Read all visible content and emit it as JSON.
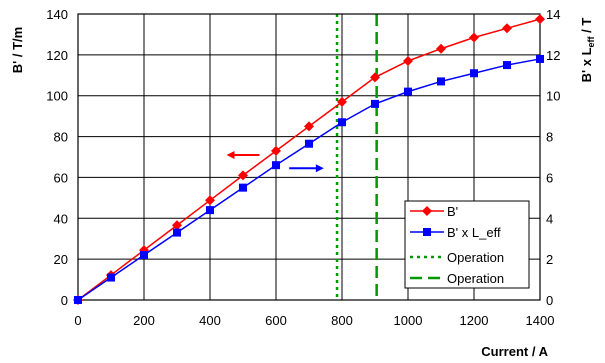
{
  "chart_data": {
    "type": "line",
    "xlabel": "Current / A",
    "ylabel_left": "B'  /  T/m",
    "ylabel_right_main": "B' x L",
    "ylabel_right_sub": "eff",
    "ylabel_right_tail": "  /  T",
    "xlim": [
      0,
      1400
    ],
    "ylim_left": [
      0,
      140
    ],
    "ylim_right": [
      0,
      14
    ],
    "x_ticks": [
      0,
      200,
      400,
      600,
      800,
      1000,
      1200,
      1400
    ],
    "y_ticks_left": [
      0,
      20,
      40,
      60,
      80,
      100,
      120,
      140
    ],
    "y_ticks_right": [
      0,
      2,
      4,
      6,
      8,
      10,
      12,
      14
    ],
    "grid": true,
    "legend_position": "bottom-right",
    "series": [
      {
        "name": "B'",
        "axis": "left",
        "color": "#ff0000",
        "marker": "diamond",
        "x": [
          0,
          100,
          200,
          300,
          400,
          500,
          600,
          700,
          800,
          900,
          1000,
          1100,
          1200,
          1300,
          1400
        ],
        "y": [
          0,
          12.2,
          24.4,
          36.6,
          48.8,
          61,
          73,
          85,
          97,
          109,
          117,
          123,
          128.5,
          133,
          137.5
        ]
      },
      {
        "name": "B' x L_eff",
        "axis": "right",
        "color": "#0000ff",
        "marker": "square",
        "x": [
          0,
          100,
          200,
          300,
          400,
          500,
          600,
          700,
          800,
          900,
          1000,
          1100,
          1200,
          1300,
          1400
        ],
        "y": [
          0,
          1.1,
          2.2,
          3.3,
          4.4,
          5.5,
          6.6,
          7.65,
          8.7,
          9.6,
          10.2,
          10.7,
          11.1,
          11.5,
          11.8
        ]
      }
    ],
    "vlines": [
      {
        "name": "Operation",
        "x": 785,
        "color": "#009900",
        "style": "dotted"
      },
      {
        "name": "Operation",
        "x": 905,
        "color": "#009900",
        "style": "dashed"
      }
    ],
    "arrows": [
      {
        "direction": "left",
        "color": "#ff0000",
        "x_from": 550,
        "x_to": 450,
        "y": 71
      },
      {
        "direction": "right",
        "color": "#0000ff",
        "x_from": 640,
        "x_to": 745,
        "y": 64.5
      }
    ]
  }
}
